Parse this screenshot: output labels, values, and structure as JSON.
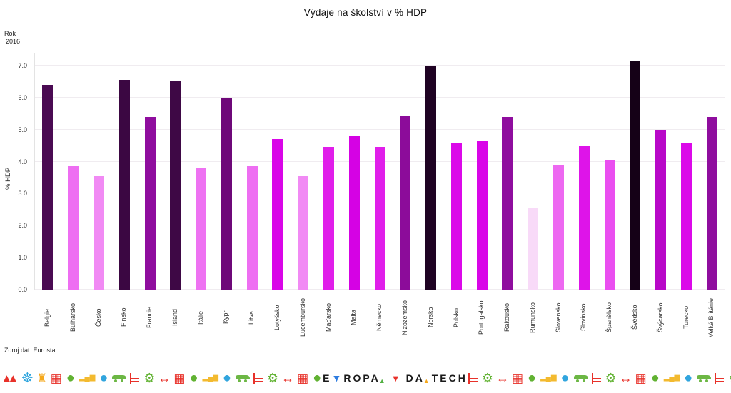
{
  "title": "Výdaje na školství v % HDP",
  "annotation": {
    "line1": "Rok",
    "line2": "2016"
  },
  "y_axis": {
    "label": "% HDP",
    "ticks": [
      "0.0",
      "1.0",
      "2.0",
      "3.0",
      "4.0",
      "5.0",
      "6.0",
      "7.0"
    ]
  },
  "source": "Zdroj dat: Eurostat",
  "chart_data": {
    "type": "bar",
    "title": "Výdaje na školství v % HDP",
    "xlabel": "",
    "ylabel": "% HDP",
    "ylim": [
      0,
      7.4
    ],
    "grid": true,
    "legend": "none",
    "categories": [
      "Belgie",
      "Bulharsko",
      "Česko",
      "Finsko",
      "Francie",
      "Island",
      "Itálie",
      "Kypr",
      "Litva",
      "Lotyšsko",
      "Lucembursko",
      "Maďarsko",
      "Malta",
      "Německo",
      "Nizozemsko",
      "Norsko",
      "Polsko",
      "Portugalsko",
      "Rakousko",
      "Rumunsko",
      "Slovensko",
      "Slovinsko",
      "Španělsko",
      "Švédsko",
      "Švýcarsko",
      "Turecko",
      "Velká Británie"
    ],
    "values": [
      6.4,
      3.85,
      3.55,
      6.55,
      5.4,
      6.5,
      3.8,
      6.0,
      3.85,
      4.7,
      3.55,
      4.45,
      4.8,
      4.45,
      5.45,
      7.0,
      4.6,
      4.65,
      5.4,
      2.55,
      3.9,
      4.5,
      4.05,
      7.15,
      5.0,
      4.6,
      5.4
    ],
    "colors": [
      "#4a0a52",
      "#ee6ef2",
      "#f18af4",
      "#3b0742",
      "#8f0d9e",
      "#3e0845",
      "#ee72f2",
      "#6e0879",
      "#ee6ef2",
      "#d905e8",
      "#f18af4",
      "#e01eea",
      "#d502e4",
      "#e01eea",
      "#8c0c9a",
      "#1f0323",
      "#db09e9",
      "#d905e8",
      "#8f0d9e",
      "#f8daf8",
      "#ed68f1",
      "#de14e9",
      "#ea4ef0",
      "#150117",
      "#b808c8",
      "#db09e9",
      "#8f0d9e"
    ]
  },
  "footer": {
    "logo_segments": [
      {
        "t": "E",
        "c": "#1a1a1a",
        "cls": "seg"
      },
      {
        "t": "▼",
        "c": "#2e7ce0",
        "cls": "seg"
      },
      {
        "t": "ROPA",
        "c": "#1a1a1a",
        "cls": "seg"
      },
      {
        "t": "▲",
        "c": "#52b043",
        "cls": "seg tri-sub"
      },
      {
        "t": "▼",
        "c": "#e8312a",
        "cls": "seg tri-solo"
      },
      {
        "t": "DA",
        "c": "#1a1a1a",
        "cls": "seg"
      },
      {
        "t": "▲",
        "c": "#f5a81c",
        "cls": "seg tri-sub"
      },
      {
        "t": "TECH",
        "c": "#1a1a1a",
        "cls": "seg"
      }
    ],
    "icons_left": [
      "mountains",
      "ferris-wheel",
      "tower",
      "building",
      "tree",
      "bar-chart",
      "globe",
      "car",
      "bench",
      "gear",
      "arrows",
      "building",
      "tree",
      "bar-chart",
      "globe",
      "car",
      "bench",
      "gear",
      "arrows",
      "building",
      "tree"
    ],
    "icons_right": [
      "bench",
      "gear",
      "arrows",
      "building",
      "tree",
      "bar-chart",
      "globe",
      "car",
      "bench",
      "gear",
      "arrows",
      "building",
      "tree",
      "bar-chart",
      "globe",
      "car",
      "bench",
      "gear",
      "globe",
      "car-red"
    ]
  }
}
